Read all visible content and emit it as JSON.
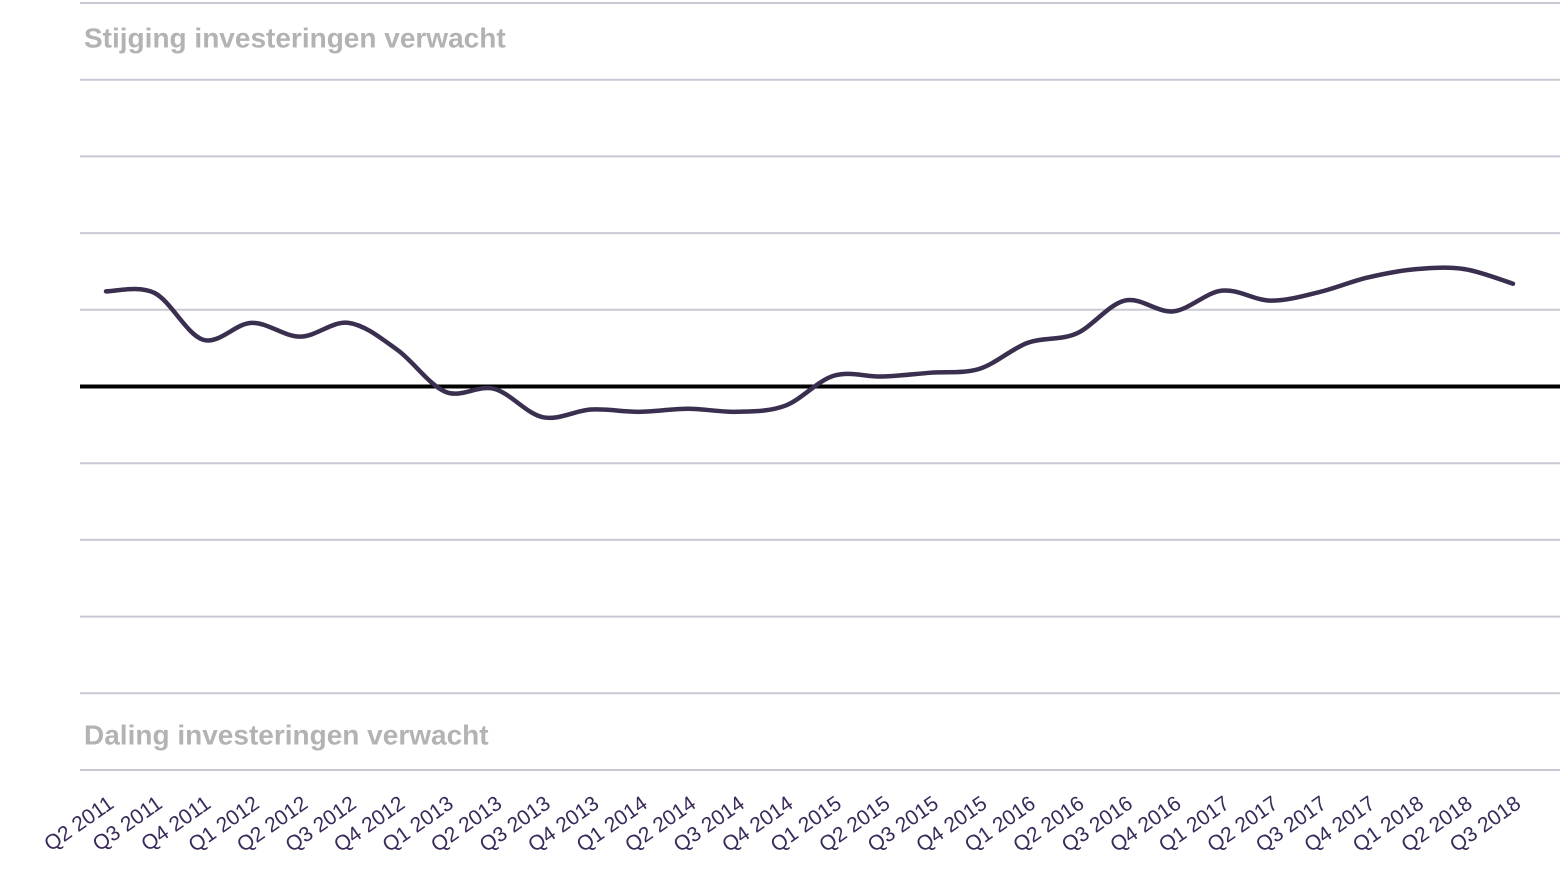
{
  "chart_data": {
    "type": "line",
    "annotations": [
      "Stijging investeringen verwacht",
      "Daling investeringen verwacht"
    ],
    "categories": [
      "Q2 2011",
      "Q3 2011",
      "Q4 2011",
      "Q1 2012",
      "Q2 2012",
      "Q3 2012",
      "Q4 2012",
      "Q1 2013",
      "Q2 2013",
      "Q3 2013",
      "Q4 2013",
      "Q1 2014",
      "Q2 2014",
      "Q3 2014",
      "Q4 2014",
      "Q1 2015",
      "Q2 2015",
      "Q3 2015",
      "Q4 2015",
      "Q1 2016",
      "Q2 2016",
      "Q3 2016",
      "Q4 2016",
      "Q1 2017",
      "Q2 2017",
      "Q3 2017",
      "Q4 2017",
      "Q1 2018",
      "Q2 2018",
      "Q3 2018"
    ],
    "values": [
      1.24,
      1.22,
      0.61,
      0.83,
      0.65,
      0.83,
      0.48,
      -0.07,
      -0.03,
      -0.4,
      -0.3,
      -0.33,
      -0.29,
      -0.33,
      -0.25,
      0.14,
      0.13,
      0.18,
      0.23,
      0.57,
      0.69,
      1.12,
      0.98,
      1.25,
      1.12,
      1.23,
      1.42,
      1.53,
      1.53,
      1.34
    ],
    "color": "#3b2f4f",
    "ylim": [
      -5,
      5
    ],
    "yticks": [
      -5,
      -4,
      -3,
      -2,
      -1,
      0,
      1,
      2,
      3,
      4,
      5
    ],
    "grid": true,
    "zero_line": true
  }
}
